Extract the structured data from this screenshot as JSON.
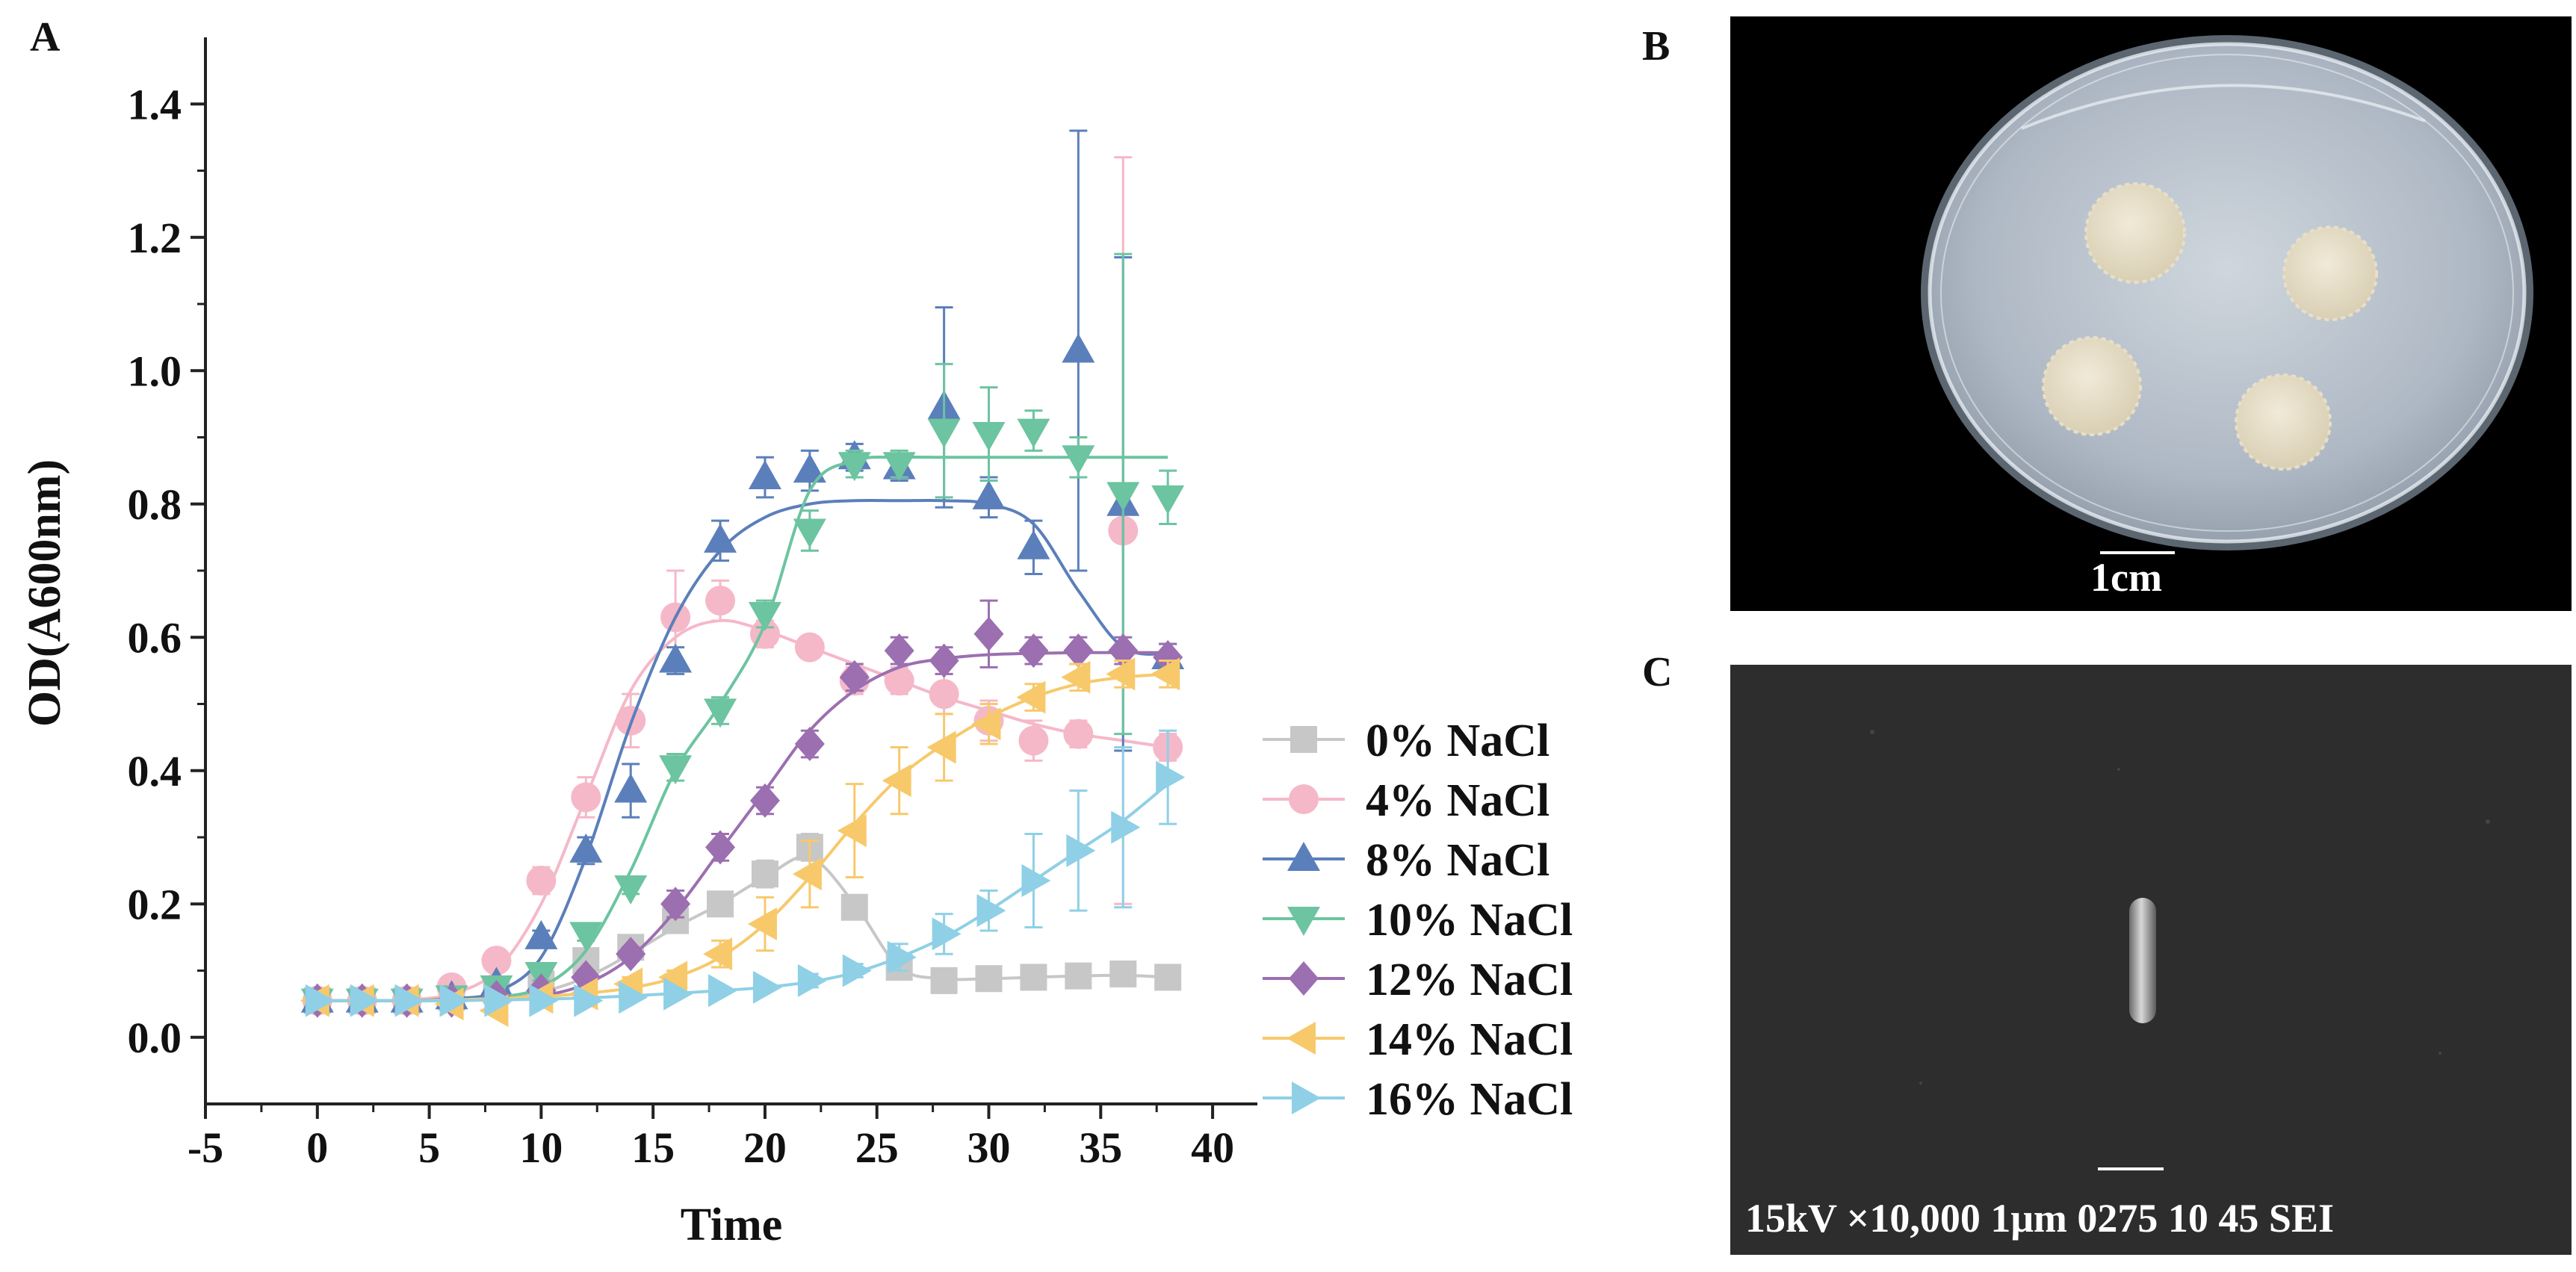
{
  "panels": {
    "a_label": "A",
    "b_label": "B",
    "c_label": "C"
  },
  "petri": {
    "scale_label": "1cm"
  },
  "sem": {
    "info_text": "15kV ×10,000  1μm 0275 10 45 SEI"
  },
  "chart_data": {
    "type": "line",
    "xlabel": "Time",
    "ylabel": "OD(A600nm)",
    "xlim": [
      -5,
      42
    ],
    "ylim": [
      -0.1,
      1.5
    ],
    "xticks": [
      -5,
      0,
      5,
      10,
      15,
      20,
      25,
      30,
      35,
      40
    ],
    "xtick_labels": [
      "-5",
      "0",
      "5",
      "10",
      "15",
      "20",
      "25",
      "30",
      "35",
      "40"
    ],
    "yticks": [
      0.0,
      0.2,
      0.4,
      0.6,
      0.8,
      1.0,
      1.2,
      1.4
    ],
    "ytick_labels": [
      "0.0",
      "0.2",
      "0.4",
      "0.6",
      "0.8",
      "1.0",
      "1.2",
      "1.4"
    ],
    "legend_position": "bottom-right",
    "x": [
      0,
      2,
      4,
      6,
      8,
      10,
      12,
      14,
      16,
      18,
      20,
      22,
      24,
      26,
      28,
      30,
      32,
      34,
      36,
      38
    ],
    "series": [
      {
        "name": "0% NaCl",
        "color": "#c7c7c7",
        "marker": "square",
        "values": [
          0.055,
          0.055,
          0.055,
          0.06,
          0.07,
          0.08,
          0.115,
          0.135,
          0.175,
          0.2,
          0.245,
          0.285,
          0.195,
          0.105,
          0.085,
          0.088,
          0.09,
          0.092,
          0.095,
          0.09
        ],
        "errors": [
          0.005,
          0.005,
          0.005,
          0.005,
          0.005,
          0.005,
          0.01,
          0.01,
          0.01,
          0.015,
          0.02,
          0.02,
          0.015,
          0.01,
          0.005,
          0.005,
          0.005,
          0.005,
          0.005,
          0.005
        ],
        "fit": [
          0.055,
          0.055,
          0.055,
          0.056,
          0.06,
          0.068,
          0.09,
          0.125,
          0.165,
          0.2,
          0.24,
          0.27,
          0.2,
          0.105,
          0.088,
          0.088,
          0.09,
          0.092,
          0.093,
          0.09
        ]
      },
      {
        "name": "4% NaCl",
        "color": "#f5b8c8",
        "marker": "circle",
        "values": [
          0.055,
          0.055,
          0.055,
          0.075,
          0.115,
          0.235,
          0.36,
          0.475,
          0.63,
          0.655,
          0.605,
          0.585,
          0.535,
          0.535,
          0.515,
          0.475,
          0.445,
          0.455,
          0.76,
          0.435
        ],
        "errors": [
          0.005,
          0.005,
          0.005,
          0.01,
          0.01,
          0.02,
          0.03,
          0.04,
          0.07,
          0.03,
          0.02,
          0.01,
          0.02,
          0.02,
          0.03,
          0.03,
          0.03,
          0.02,
          0.56,
          0.02
        ],
        "fit": [
          0.055,
          0.055,
          0.056,
          0.065,
          0.1,
          0.2,
          0.36,
          0.52,
          0.6,
          0.625,
          0.61,
          0.585,
          0.56,
          0.535,
          0.51,
          0.49,
          0.47,
          0.455,
          0.445,
          0.435
        ]
      },
      {
        "name": "8% NaCl",
        "color": "#5b7fba",
        "marker": "triangle-up",
        "values": [
          0.055,
          0.055,
          0.055,
          0.06,
          0.08,
          0.15,
          0.28,
          0.37,
          0.565,
          0.745,
          0.84,
          0.85,
          0.87,
          0.855,
          0.945,
          0.81,
          0.735,
          1.03,
          0.8,
          0.57
        ],
        "errors": [
          0.005,
          0.005,
          0.005,
          0.005,
          0.01,
          0.01,
          0.02,
          0.04,
          0.02,
          0.03,
          0.03,
          0.03,
          0.02,
          0.02,
          0.15,
          0.03,
          0.04,
          0.33,
          0.37,
          0.02
        ],
        "fit": [
          0.055,
          0.055,
          0.055,
          0.058,
          0.068,
          0.12,
          0.27,
          0.47,
          0.63,
          0.73,
          0.78,
          0.8,
          0.805,
          0.805,
          0.805,
          0.8,
          0.77,
          0.67,
          0.585,
          0.575
        ]
      },
      {
        "name": "10% NaCl",
        "color": "#6cc4a0",
        "marker": "triangle-down",
        "values": [
          0.055,
          0.055,
          0.055,
          0.06,
          0.075,
          0.095,
          0.155,
          0.225,
          0.405,
          0.49,
          0.635,
          0.76,
          0.86,
          0.86,
          0.91,
          0.905,
          0.91,
          0.87,
          0.815,
          0.81
        ],
        "errors": [
          0.005,
          0.005,
          0.005,
          0.005,
          0.005,
          0.01,
          0.01,
          0.01,
          0.02,
          0.02,
          0.02,
          0.03,
          0.02,
          0.02,
          0.1,
          0.07,
          0.03,
          0.03,
          0.36,
          0.04
        ],
        "fit": [
          0.055,
          0.055,
          0.055,
          0.056,
          0.06,
          0.075,
          0.13,
          0.25,
          0.4,
          0.5,
          0.62,
          0.82,
          0.865,
          0.87,
          0.87,
          0.87,
          0.87,
          0.87,
          0.87,
          0.87
        ]
      },
      {
        "name": "12% NaCl",
        "color": "#9b6fb0",
        "marker": "diamond",
        "values": [
          0.055,
          0.055,
          0.055,
          0.055,
          0.06,
          0.07,
          0.09,
          0.125,
          0.2,
          0.285,
          0.355,
          0.44,
          0.54,
          0.58,
          0.565,
          0.605,
          0.58,
          0.58,
          0.58,
          0.57
        ],
        "errors": [
          0.005,
          0.005,
          0.005,
          0.005,
          0.005,
          0.005,
          0.01,
          0.01,
          0.02,
          0.02,
          0.02,
          0.02,
          0.02,
          0.02,
          0.02,
          0.05,
          0.02,
          0.02,
          0.02,
          0.02
        ],
        "fit": [
          0.055,
          0.055,
          0.055,
          0.055,
          0.057,
          0.062,
          0.08,
          0.12,
          0.19,
          0.28,
          0.37,
          0.46,
          0.52,
          0.555,
          0.568,
          0.574,
          0.576,
          0.577,
          0.577,
          0.577
        ]
      },
      {
        "name": "14% NaCl",
        "color": "#f7c96b",
        "marker": "triangle-left",
        "values": [
          0.055,
          0.055,
          0.055,
          0.05,
          0.04,
          0.06,
          0.065,
          0.08,
          0.09,
          0.125,
          0.17,
          0.245,
          0.31,
          0.385,
          0.435,
          0.47,
          0.51,
          0.54,
          0.545,
          0.545
        ],
        "errors": [
          0.005,
          0.005,
          0.005,
          0.005,
          0.005,
          0.005,
          0.005,
          0.01,
          0.01,
          0.02,
          0.04,
          0.05,
          0.07,
          0.05,
          0.05,
          0.03,
          0.02,
          0.02,
          0.02,
          0.02
        ],
        "fit": [
          0.055,
          0.055,
          0.055,
          0.056,
          0.058,
          0.061,
          0.066,
          0.074,
          0.09,
          0.12,
          0.17,
          0.24,
          0.32,
          0.39,
          0.44,
          0.48,
          0.51,
          0.53,
          0.54,
          0.545
        ]
      },
      {
        "name": "16% NaCl",
        "color": "#8fd0e6",
        "marker": "triangle-right",
        "values": [
          0.055,
          0.055,
          0.055,
          0.055,
          0.055,
          0.055,
          0.055,
          0.06,
          0.065,
          0.07,
          0.075,
          0.085,
          0.1,
          0.12,
          0.155,
          0.19,
          0.235,
          0.28,
          0.315,
          0.39
        ],
        "errors": [
          0.005,
          0.005,
          0.005,
          0.005,
          0.005,
          0.005,
          0.005,
          0.005,
          0.005,
          0.005,
          0.005,
          0.01,
          0.01,
          0.02,
          0.03,
          0.03,
          0.07,
          0.09,
          0.12,
          0.07
        ],
        "fit": [
          0.055,
          0.055,
          0.055,
          0.055,
          0.056,
          0.057,
          0.059,
          0.062,
          0.066,
          0.07,
          0.075,
          0.083,
          0.097,
          0.12,
          0.15,
          0.19,
          0.235,
          0.28,
          0.325,
          0.38
        ]
      }
    ]
  }
}
